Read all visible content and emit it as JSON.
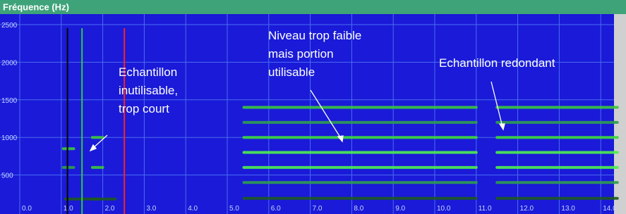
{
  "chart_data": {
    "type": "spectrogram",
    "title": "Fréquence (Hz)",
    "xlim": [
      0,
      14.5
    ],
    "ylim": [
      0,
      2500
    ],
    "xticks": [
      {
        "value": 0,
        "label": "0.0"
      },
      {
        "value": 1,
        "label": "1.0"
      },
      {
        "value": 2,
        "label": "2.0"
      },
      {
        "value": 3,
        "label": "3.0"
      },
      {
        "value": 4,
        "label": "4.0"
      },
      {
        "value": 5,
        "label": "5.0"
      },
      {
        "value": 6,
        "label": "6.0"
      },
      {
        "value": 7,
        "label": "7.0"
      },
      {
        "value": 8,
        "label": "8.0"
      },
      {
        "value": 9,
        "label": "9.0"
      },
      {
        "value": 10,
        "label": "10.0"
      },
      {
        "value": 11,
        "label": "11.0"
      },
      {
        "value": 12,
        "label": "12.0"
      },
      {
        "value": 13,
        "label": "13.0"
      },
      {
        "value": 14,
        "label": "14.0"
      }
    ],
    "yticks": [
      500,
      1000,
      1500,
      2000,
      2500
    ],
    "grid": true,
    "markers": [
      {
        "x": 1.15,
        "color": "#000000"
      },
      {
        "x": 1.5,
        "color": "#2ecc40"
      },
      {
        "x": 2.52,
        "color": "#ff2020"
      }
    ],
    "traces": [
      {
        "x": [
          1.05,
          1.3
        ],
        "y": 850,
        "color": "#3cc83c"
      },
      {
        "x": [
          1.05,
          1.3
        ],
        "y": 600,
        "color": "#2e9e4e"
      },
      {
        "x": [
          1.1,
          1.9
        ],
        "y": 180,
        "color": "#1e5a1e"
      },
      {
        "x": [
          1.75,
          2.0
        ],
        "y": 1000,
        "color": "#3cc83c"
      },
      {
        "x": [
          1.75,
          2.0
        ],
        "y": 600,
        "color": "#3cc83c"
      },
      {
        "x": [
          1.75,
          2.3
        ],
        "y": 180,
        "color": "#1e5a1e"
      },
      {
        "x": [
          5.4,
          11.0
        ],
        "y": 1400,
        "color": "#3cc83c"
      },
      {
        "x": [
          5.4,
          11.0
        ],
        "y": 1200,
        "color": "#2e9e4e"
      },
      {
        "x": [
          5.4,
          11.0
        ],
        "y": 1000,
        "color": "#3cd83c"
      },
      {
        "x": [
          5.4,
          11.0
        ],
        "y": 800,
        "color": "#4ef04e"
      },
      {
        "x": [
          5.4,
          11.0
        ],
        "y": 600,
        "color": "#4ef04e"
      },
      {
        "x": [
          5.4,
          11.0
        ],
        "y": 400,
        "color": "#2e9e4e"
      },
      {
        "x": [
          5.4,
          11.0
        ],
        "y": 190,
        "color": "#1e5a1e"
      },
      {
        "x": [
          11.5,
          14.4
        ],
        "y": 1400,
        "color": "#3cc83c"
      },
      {
        "x": [
          11.5,
          14.4
        ],
        "y": 1200,
        "color": "#2e9e4e"
      },
      {
        "x": [
          11.5,
          14.4
        ],
        "y": 1000,
        "color": "#3cd83c"
      },
      {
        "x": [
          11.5,
          14.4
        ],
        "y": 800,
        "color": "#4ef04e"
      },
      {
        "x": [
          11.5,
          14.4
        ],
        "y": 600,
        "color": "#4ef04e"
      },
      {
        "x": [
          11.5,
          14.4
        ],
        "y": 400,
        "color": "#2e9e4e"
      },
      {
        "x": [
          11.5,
          14.4
        ],
        "y": 190,
        "color": "#1e5a1e"
      }
    ],
    "annotations": [
      "Echantillon",
      "inutilisable,",
      "trop court",
      "Niveau trop faible",
      "mais portion",
      "utilisable",
      "Echantillon redondant"
    ]
  }
}
